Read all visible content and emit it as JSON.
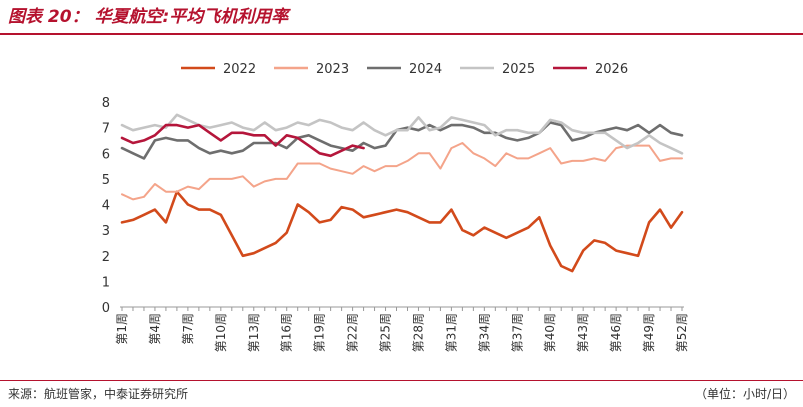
{
  "header": {
    "title": "图表 20：  华夏航空:平均飞机利用率"
  },
  "footer": {
    "source": "来源：航班管家，中泰证券研究所",
    "unit": "（单位：小时/日）"
  },
  "chart_data": {
    "type": "line",
    "title": "图表 20：  华夏航空:平均飞机利用率",
    "xlabel": "",
    "ylabel": "",
    "ylim": [
      0,
      8
    ],
    "yticks": [
      0,
      1,
      2,
      3,
      4,
      5,
      6,
      7,
      8
    ],
    "grid": false,
    "legend_position": "top",
    "x": [
      "第1周",
      "第2周",
      "第3周",
      "第4周",
      "第5周",
      "第6周",
      "第7周",
      "第8周",
      "第9周",
      "第10周",
      "第11周",
      "第12周",
      "第13周",
      "第14周",
      "第15周",
      "第16周",
      "第17周",
      "第18周",
      "第19周",
      "第20周",
      "第21周",
      "第22周",
      "第23周",
      "第24周",
      "第25周",
      "第26周",
      "第27周",
      "第28周",
      "第29周",
      "第30周",
      "第31周",
      "第32周",
      "第33周",
      "第34周",
      "第35周",
      "第36周",
      "第37周",
      "第38周",
      "第39周",
      "第40周",
      "第41周",
      "第42周",
      "第43周",
      "第44周",
      "第45周",
      "第46周",
      "第47周",
      "第48周",
      "第49周",
      "第50周",
      "第51周",
      "第52周"
    ],
    "x_tick_labels": [
      "第1周",
      "第4周",
      "第7周",
      "第10周",
      "第13周",
      "第16周",
      "第19周",
      "第22周",
      "第25周",
      "第28周",
      "第31周",
      "第34周",
      "第37周",
      "第40周",
      "第43周",
      "第46周",
      "第49周",
      "第52周"
    ],
    "series": [
      {
        "name": "2022",
        "color": "#d24a1b",
        "width": 2.6,
        "values": [
          3.3,
          3.4,
          3.6,
          3.8,
          3.3,
          4.5,
          4.0,
          3.8,
          3.8,
          3.6,
          2.8,
          2.0,
          2.1,
          2.3,
          2.5,
          2.9,
          4.0,
          3.7,
          3.3,
          3.4,
          3.9,
          3.8,
          3.5,
          3.6,
          3.7,
          3.8,
          3.7,
          3.5,
          3.3,
          3.3,
          3.8,
          3.0,
          2.8,
          3.1,
          2.9,
          2.7,
          2.9,
          3.1,
          3.5,
          2.4,
          1.6,
          1.4,
          2.2,
          2.6,
          2.5,
          2.2,
          2.1,
          2.0,
          3.3,
          3.8,
          3.1,
          3.7
        ]
      },
      {
        "name": "2023",
        "color": "#f4a48a",
        "width": 2.0,
        "values": [
          4.4,
          4.2,
          4.3,
          4.8,
          4.5,
          4.5,
          4.7,
          4.6,
          5.0,
          5.0,
          5.0,
          5.1,
          4.7,
          4.9,
          5.0,
          5.0,
          5.6,
          5.6,
          5.6,
          5.4,
          5.3,
          5.2,
          5.5,
          5.3,
          5.5,
          5.5,
          5.7,
          6.0,
          6.0,
          5.4,
          6.2,
          6.4,
          6.0,
          5.8,
          5.5,
          6.0,
          5.8,
          5.8,
          6.0,
          6.2,
          5.6,
          5.7,
          5.7,
          5.8,
          5.7,
          6.2,
          6.3,
          6.3,
          6.3,
          5.7,
          5.8,
          5.8
        ]
      },
      {
        "name": "2024",
        "color": "#6e6e6e",
        "width": 2.6,
        "values": [
          6.2,
          6.0,
          5.8,
          6.5,
          6.6,
          6.5,
          6.5,
          6.2,
          6.0,
          6.1,
          6.0,
          6.1,
          6.4,
          6.4,
          6.4,
          6.2,
          6.6,
          6.7,
          6.5,
          6.3,
          6.2,
          6.1,
          6.4,
          6.2,
          6.3,
          6.9,
          7.0,
          6.9,
          7.1,
          6.9,
          7.1,
          7.1,
          7.0,
          6.8,
          6.8,
          6.6,
          6.5,
          6.6,
          6.8,
          7.2,
          7.1,
          6.5,
          6.6,
          6.8,
          6.9,
          7.0,
          6.9,
          7.1,
          6.8,
          7.1,
          6.8,
          6.7
        ]
      },
      {
        "name": "2025",
        "color": "#c4c4c4",
        "width": 2.6,
        "values": [
          7.1,
          6.9,
          7.0,
          7.1,
          7.0,
          7.5,
          7.3,
          7.1,
          7.0,
          7.1,
          7.2,
          7.0,
          6.9,
          7.2,
          6.9,
          7.0,
          7.2,
          7.1,
          7.3,
          7.2,
          7.0,
          6.9,
          7.2,
          6.9,
          6.7,
          6.9,
          6.9,
          7.4,
          6.9,
          7.0,
          7.4,
          7.3,
          7.2,
          7.1,
          6.7,
          6.9,
          6.9,
          6.8,
          6.8,
          7.3,
          7.2,
          6.9,
          6.8,
          6.8,
          6.8,
          6.5,
          6.2,
          6.4,
          6.7,
          6.4,
          6.2,
          6.0
        ]
      },
      {
        "name": "2026",
        "color": "#b5163b",
        "width": 2.6,
        "values": [
          6.6,
          6.4,
          6.5,
          6.7,
          7.1,
          7.1,
          7.0,
          7.1,
          6.8,
          6.5,
          6.8,
          6.8,
          6.7,
          6.7,
          6.3,
          6.7,
          6.6,
          6.3,
          6.0,
          5.9,
          6.1,
          6.3,
          6.2,
          null,
          null,
          null,
          null,
          null,
          null,
          null,
          null,
          null,
          null,
          null,
          null,
          null,
          null,
          null,
          null,
          null,
          null,
          null,
          null,
          null,
          null,
          null,
          null,
          null,
          null,
          null,
          null,
          null
        ]
      }
    ]
  }
}
